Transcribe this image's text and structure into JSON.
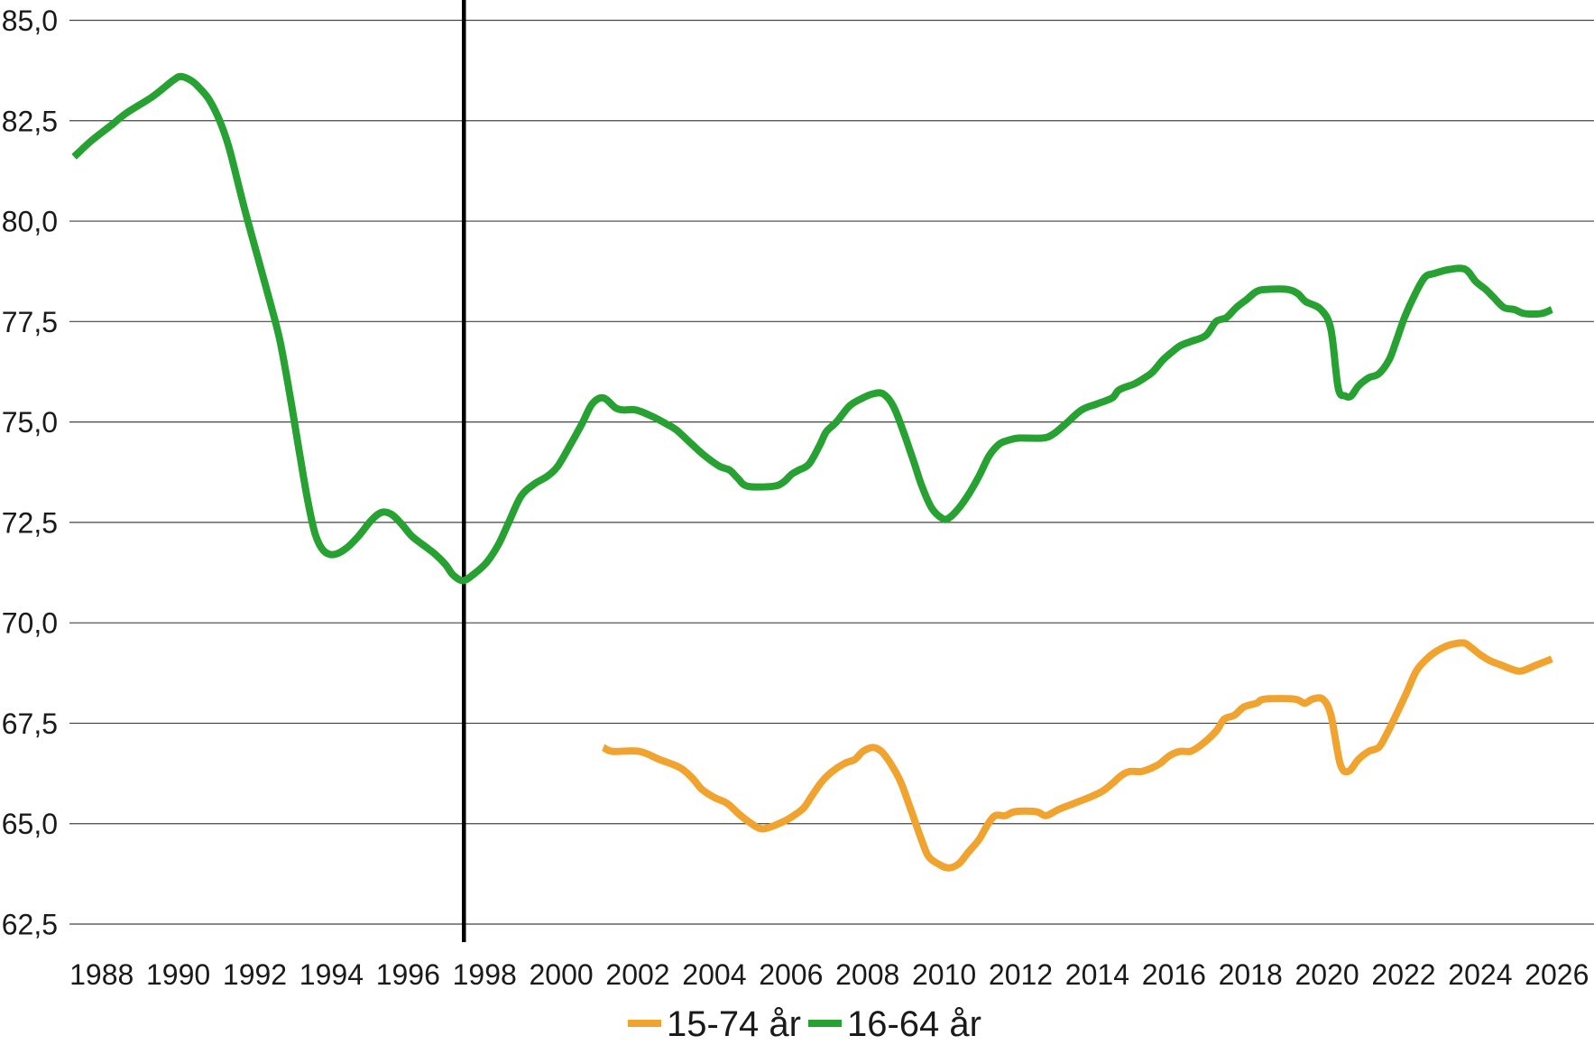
{
  "chart_data": {
    "type": "line",
    "xlim": [
      1987.16,
      2026.97
    ],
    "ylim": [
      62.5,
      85
    ],
    "x_ticks": [
      1988,
      1990,
      1992,
      1994,
      1996,
      1998,
      2000,
      2002,
      2004,
      2006,
      2008,
      2010,
      2012,
      2014,
      2016,
      2018,
      2020,
      2022,
      2024,
      2026
    ],
    "x_tick_labels": [
      "1988",
      "1990",
      "1992",
      "1994",
      "1996",
      "1998",
      "2000",
      "2002",
      "2004",
      "2006",
      "2008",
      "2010",
      "2012",
      "2014",
      "2016",
      "2018",
      "2020",
      "2022",
      "2024",
      "2026"
    ],
    "y_ticks": [
      62.5,
      65,
      67.5,
      70,
      72.5,
      75,
      77.5,
      80,
      82.5,
      85
    ],
    "y_tick_labels": [
      "62,5",
      "65,0",
      "67,5",
      "70,0",
      "72,5",
      "75,0",
      "77,5",
      "80,0",
      "82,5",
      "85,0"
    ],
    "grid": {
      "horizontal": true,
      "vertical": false
    },
    "legend": "bottom-center",
    "reference_line": {
      "x": 1997.46,
      "color": "#000000"
    },
    "series": [
      {
        "name": "15-74 år",
        "color": "#f0a32f",
        "points": [
          [
            2001.1,
            66.9
          ],
          [
            2001.34,
            66.8
          ],
          [
            2002.03,
            66.8
          ],
          [
            2002.56,
            66.6
          ],
          [
            2003.09,
            66.4
          ],
          [
            2003.41,
            66.15
          ],
          [
            2003.68,
            65.85
          ],
          [
            2004.0,
            65.65
          ],
          [
            2004.34,
            65.5
          ],
          [
            2004.69,
            65.2
          ],
          [
            2005.14,
            64.9
          ],
          [
            2005.41,
            64.9
          ],
          [
            2005.8,
            65.05
          ],
          [
            2006.07,
            65.2
          ],
          [
            2006.34,
            65.4
          ],
          [
            2006.55,
            65.7
          ],
          [
            2006.81,
            66.05
          ],
          [
            2007.08,
            66.3
          ],
          [
            2007.4,
            66.5
          ],
          [
            2007.67,
            66.6
          ],
          [
            2007.88,
            66.8
          ],
          [
            2008.14,
            66.9
          ],
          [
            2008.36,
            66.8
          ],
          [
            2008.6,
            66.5
          ],
          [
            2008.86,
            66.05
          ],
          [
            2009.13,
            65.35
          ],
          [
            2009.39,
            64.65
          ],
          [
            2009.58,
            64.2
          ],
          [
            2009.84,
            64.0
          ],
          [
            2010.11,
            63.9
          ],
          [
            2010.38,
            64.0
          ],
          [
            2010.64,
            64.3
          ],
          [
            2010.91,
            64.6
          ],
          [
            2011.12,
            64.95
          ],
          [
            2011.33,
            65.2
          ],
          [
            2011.6,
            65.2
          ],
          [
            2011.86,
            65.3
          ],
          [
            2012.4,
            65.3
          ],
          [
            2012.66,
            65.2
          ],
          [
            2012.98,
            65.35
          ],
          [
            2013.38,
            65.5
          ],
          [
            2013.78,
            65.65
          ],
          [
            2014.12,
            65.8
          ],
          [
            2014.39,
            66.0
          ],
          [
            2014.63,
            66.2
          ],
          [
            2014.84,
            66.3
          ],
          [
            2015.16,
            66.3
          ],
          [
            2015.45,
            66.4
          ],
          [
            2015.64,
            66.5
          ],
          [
            2015.9,
            66.7
          ],
          [
            2016.17,
            66.8
          ],
          [
            2016.43,
            66.8
          ],
          [
            2016.7,
            66.95
          ],
          [
            2017.1,
            67.3
          ],
          [
            2017.31,
            67.6
          ],
          [
            2017.58,
            67.7
          ],
          [
            2017.82,
            67.9
          ],
          [
            2018.16,
            68.0
          ],
          [
            2018.37,
            68.1
          ],
          [
            2019.15,
            68.1
          ],
          [
            2019.41,
            68.0
          ],
          [
            2019.62,
            68.1
          ],
          [
            2019.89,
            68.1
          ],
          [
            2020.1,
            67.7
          ],
          [
            2020.34,
            66.5
          ],
          [
            2020.55,
            66.3
          ],
          [
            2020.82,
            66.6
          ],
          [
            2021.09,
            66.8
          ],
          [
            2021.35,
            66.9
          ],
          [
            2021.54,
            67.2
          ],
          [
            2021.8,
            67.7
          ],
          [
            2022.07,
            68.25
          ],
          [
            2022.33,
            68.8
          ],
          [
            2022.6,
            69.1
          ],
          [
            2022.87,
            69.3
          ],
          [
            2023.21,
            69.45
          ],
          [
            2023.56,
            69.5
          ],
          [
            2023.74,
            69.4
          ],
          [
            2024.01,
            69.2
          ],
          [
            2024.27,
            69.05
          ],
          [
            2024.54,
            68.95
          ],
          [
            2024.81,
            68.85
          ],
          [
            2025.07,
            68.8
          ],
          [
            2025.47,
            68.95
          ],
          [
            2025.87,
            69.1
          ]
        ]
      },
      {
        "name": "16-64 år",
        "color": "#27a131",
        "points": [
          [
            1987.28,
            81.6
          ],
          [
            1987.73,
            82.0
          ],
          [
            1988.27,
            82.4
          ],
          [
            1988.66,
            82.7
          ],
          [
            1989.33,
            83.1
          ],
          [
            1989.86,
            83.5
          ],
          [
            1990.07,
            83.6
          ],
          [
            1990.34,
            83.5
          ],
          [
            1990.52,
            83.35
          ],
          [
            1990.79,
            83.05
          ],
          [
            1991.06,
            82.55
          ],
          [
            1991.32,
            81.85
          ],
          [
            1991.72,
            80.35
          ],
          [
            1992.12,
            78.95
          ],
          [
            1992.38,
            78.05
          ],
          [
            1992.65,
            77.05
          ],
          [
            1992.92,
            75.65
          ],
          [
            1993.18,
            74.15
          ],
          [
            1993.39,
            73.0
          ],
          [
            1993.58,
            72.2
          ],
          [
            1993.79,
            71.8
          ],
          [
            1994.06,
            71.7
          ],
          [
            1994.38,
            71.85
          ],
          [
            1994.7,
            72.15
          ],
          [
            1995.04,
            72.55
          ],
          [
            1995.31,
            72.75
          ],
          [
            1995.57,
            72.7
          ],
          [
            1995.84,
            72.45
          ],
          [
            1996.11,
            72.15
          ],
          [
            1996.45,
            71.9
          ],
          [
            1996.72,
            71.7
          ],
          [
            1996.98,
            71.45
          ],
          [
            1997.17,
            71.2
          ],
          [
            1997.43,
            71.05
          ],
          [
            1997.7,
            71.2
          ],
          [
            1998.05,
            71.5
          ],
          [
            1998.36,
            71.95
          ],
          [
            1998.63,
            72.5
          ],
          [
            1998.95,
            73.15
          ],
          [
            1999.29,
            73.45
          ],
          [
            1999.64,
            73.65
          ],
          [
            1999.91,
            73.9
          ],
          [
            2000.22,
            74.4
          ],
          [
            2000.54,
            74.95
          ],
          [
            2000.81,
            75.45
          ],
          [
            2001.1,
            75.6
          ],
          [
            2001.42,
            75.35
          ],
          [
            2001.63,
            75.3
          ],
          [
            2001.95,
            75.3
          ],
          [
            2002.35,
            75.15
          ],
          [
            2002.75,
            74.95
          ],
          [
            2003.01,
            74.8
          ],
          [
            2003.41,
            74.45
          ],
          [
            2003.76,
            74.15
          ],
          [
            2004.13,
            73.9
          ],
          [
            2004.4,
            73.8
          ],
          [
            2004.61,
            73.6
          ],
          [
            2004.87,
            73.4
          ],
          [
            2005.54,
            73.4
          ],
          [
            2005.8,
            73.5
          ],
          [
            2006.02,
            73.7
          ],
          [
            2006.2,
            73.8
          ],
          [
            2006.47,
            73.95
          ],
          [
            2006.74,
            74.4
          ],
          [
            2006.92,
            74.75
          ],
          [
            2007.19,
            75.0
          ],
          [
            2007.53,
            75.4
          ],
          [
            2007.88,
            75.6
          ],
          [
            2008.14,
            75.7
          ],
          [
            2008.41,
            75.7
          ],
          [
            2008.67,
            75.4
          ],
          [
            2008.94,
            74.75
          ],
          [
            2009.21,
            74.0
          ],
          [
            2009.42,
            73.4
          ],
          [
            2009.68,
            72.85
          ],
          [
            2009.95,
            72.6
          ],
          [
            2010.11,
            72.6
          ],
          [
            2010.38,
            72.85
          ],
          [
            2010.64,
            73.2
          ],
          [
            2010.91,
            73.65
          ],
          [
            2011.17,
            74.15
          ],
          [
            2011.44,
            74.45
          ],
          [
            2011.7,
            74.55
          ],
          [
            2011.97,
            74.6
          ],
          [
            2012.58,
            74.6
          ],
          [
            2012.85,
            74.7
          ],
          [
            2013.17,
            74.95
          ],
          [
            2013.59,
            75.3
          ],
          [
            2013.99,
            75.45
          ],
          [
            2014.39,
            75.6
          ],
          [
            2014.57,
            75.8
          ],
          [
            2014.97,
            75.95
          ],
          [
            2015.24,
            76.1
          ],
          [
            2015.45,
            76.25
          ],
          [
            2015.72,
            76.55
          ],
          [
            2015.96,
            76.75
          ],
          [
            2016.17,
            76.9
          ],
          [
            2016.43,
            77.0
          ],
          [
            2016.83,
            77.15
          ],
          [
            2017.1,
            77.5
          ],
          [
            2017.37,
            77.6
          ],
          [
            2017.63,
            77.85
          ],
          [
            2017.9,
            78.05
          ],
          [
            2018.16,
            78.25
          ],
          [
            2018.43,
            78.3
          ],
          [
            2018.96,
            78.3
          ],
          [
            2019.23,
            78.2
          ],
          [
            2019.44,
            78.0
          ],
          [
            2019.84,
            77.8
          ],
          [
            2020.1,
            77.3
          ],
          [
            2020.29,
            75.85
          ],
          [
            2020.47,
            75.65
          ],
          [
            2020.63,
            75.65
          ],
          [
            2020.82,
            75.9
          ],
          [
            2021.09,
            76.1
          ],
          [
            2021.35,
            76.2
          ],
          [
            2021.62,
            76.55
          ],
          [
            2021.8,
            77.0
          ],
          [
            2022.02,
            77.6
          ],
          [
            2022.28,
            78.15
          ],
          [
            2022.55,
            78.6
          ],
          [
            2022.81,
            78.7
          ],
          [
            2023.21,
            78.8
          ],
          [
            2023.61,
            78.8
          ],
          [
            2023.88,
            78.5
          ],
          [
            2024.14,
            78.3
          ],
          [
            2024.35,
            78.1
          ],
          [
            2024.62,
            77.85
          ],
          [
            2024.89,
            77.8
          ],
          [
            2025.15,
            77.7
          ],
          [
            2025.6,
            77.7
          ],
          [
            2025.87,
            77.8
          ]
        ]
      }
    ]
  }
}
